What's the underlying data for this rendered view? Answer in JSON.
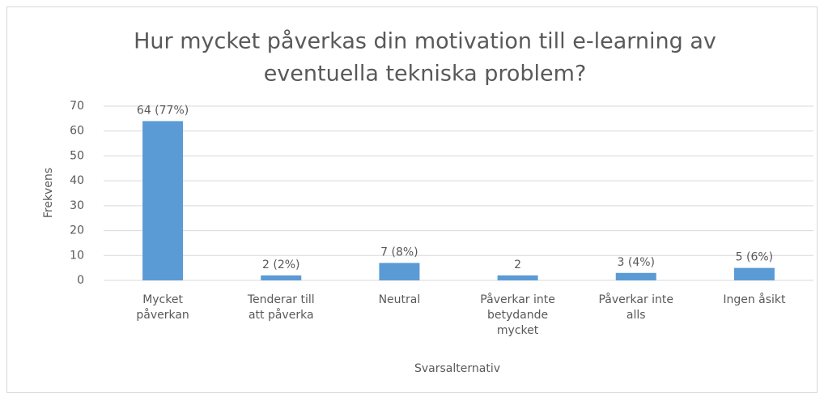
{
  "chart_data": {
    "type": "bar",
    "title": [
      "Hur mycket påverkas din motivation till  e-learning av",
      "eventuella tekniska problem?"
    ],
    "categories": [
      [
        "Mycket",
        "påverkan"
      ],
      [
        "Tenderar till",
        "att påverka"
      ],
      [
        "Neutral"
      ],
      [
        "Påverkar inte",
        "betydande",
        "mycket"
      ],
      [
        "Påverkar inte",
        "alls"
      ],
      [
        "Ingen åsikt"
      ]
    ],
    "values": [
      64,
      2,
      7,
      2,
      3,
      5
    ],
    "value_labels": [
      "64 (77%)",
      "2 (2%)",
      "7 (8%)",
      "2",
      "3 (4%)",
      "5 (6%)"
    ],
    "color": "#5b9bd5",
    "xlabel": "Svarsalternativ",
    "ylabel": "Frekvens",
    "ylim": [
      0,
      70
    ],
    "yticks": [
      0,
      10,
      20,
      30,
      40,
      50,
      60,
      70
    ],
    "grid": true
  }
}
